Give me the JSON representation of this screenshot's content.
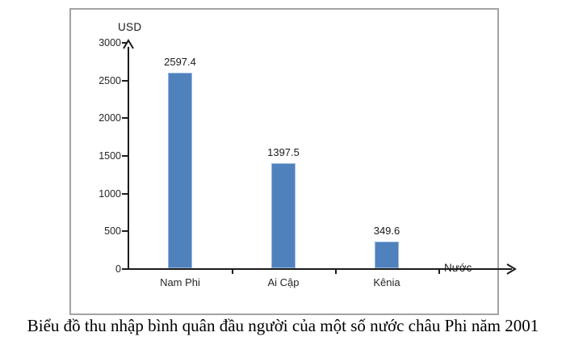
{
  "caption": "Biểu đồ thu nhập bình quân đầu người của một số nước châu Phi năm 2001",
  "chart_data": {
    "type": "bar",
    "title": "",
    "categories": [
      "Nam Phi",
      "Ai Cập",
      "Kênia"
    ],
    "values": [
      2597.4,
      1397.5,
      349.6
    ],
    "value_labels": [
      "2597.4",
      "1397.5",
      "349.6"
    ],
    "xlabel": "Nước",
    "ylabel": "USD",
    "ylim": [
      0,
      3000
    ],
    "yticks": [
      0,
      500,
      1000,
      1500,
      2000,
      2500,
      3000
    ],
    "grid": false,
    "legend": "none",
    "bar_color": "#4f81bd",
    "bar_border_color": "#9ab8de",
    "axis_color": "#1c1c1c"
  }
}
